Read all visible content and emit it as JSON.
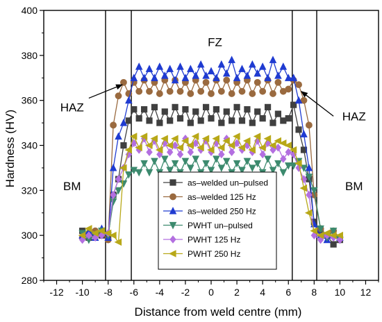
{
  "chart_data": {
    "type": "line",
    "xlabel": "Distance from weld centre (mm)",
    "ylabel": "Hardness (HV)",
    "xlim": [
      -13,
      13
    ],
    "ylim": [
      280,
      400
    ],
    "xticks": [
      -12,
      -10,
      -8,
      -6,
      -4,
      -2,
      0,
      2,
      4,
      6,
      8,
      10,
      12
    ],
    "yticks": [
      280,
      300,
      320,
      340,
      360,
      380,
      400
    ],
    "grid": false,
    "legend_position": "bottom-center",
    "boundaries": [
      -8.2,
      -6.2,
      6.3,
      8.2
    ],
    "region_labels": [
      {
        "text": "FZ",
        "x": 0.3,
        "y": 386
      },
      {
        "text": "HAZ",
        "x": -10.8,
        "y": 357
      },
      {
        "text": "HAZ",
        "x": 11.1,
        "y": 353
      },
      {
        "text": "BM",
        "x": -10.8,
        "y": 322
      },
      {
        "text": "BM",
        "x": 11.1,
        "y": 322
      }
    ],
    "annotations": [
      {
        "from": [
          -9.5,
          361
        ],
        "to": [
          -6.9,
          367
        ]
      },
      {
        "from": [
          9.5,
          353
        ],
        "to": [
          7.0,
          364
        ]
      }
    ],
    "series": [
      {
        "name": "as–welded un–pulsed",
        "color": "#404040",
        "marker": "square",
        "x": [
          -10,
          -9.5,
          -9,
          -8.5,
          -8,
          -7.6,
          -7.2,
          -6.8,
          -6.4,
          -6.0,
          -5.6,
          -5.2,
          -4.8,
          -4.4,
          -4.0,
          -3.6,
          -3.2,
          -2.8,
          -2.4,
          -2.0,
          -1.6,
          -1.2,
          -0.8,
          -0.4,
          0.0,
          0.4,
          0.8,
          1.2,
          1.6,
          2.0,
          2.4,
          2.8,
          3.2,
          3.6,
          4.0,
          4.4,
          4.8,
          5.2,
          5.6,
          6.0,
          6.4,
          6.8,
          7.2,
          7.6,
          8.0,
          8.5,
          9,
          9.5,
          10
        ],
        "values": [
          302,
          299,
          301,
          300,
          299,
          318,
          325,
          340,
          351,
          356,
          352,
          356,
          351,
          357,
          350,
          355,
          351,
          357,
          352,
          356,
          350,
          355,
          351,
          357,
          352,
          356,
          350,
          355,
          351,
          357,
          351,
          356,
          350,
          355,
          352,
          357,
          350,
          354,
          351,
          352,
          358,
          347,
          338,
          325,
          306,
          302,
          300,
          296,
          298
        ]
      },
      {
        "name": "as–welded 125 Hz",
        "color": "#9a6a3f",
        "marker": "circle",
        "x": [
          -10,
          -9.5,
          -9,
          -8.5,
          -8,
          -7.6,
          -7.2,
          -6.8,
          -6.4,
          -6.0,
          -5.6,
          -5.2,
          -4.8,
          -4.4,
          -4.0,
          -3.6,
          -3.2,
          -2.8,
          -2.4,
          -2.0,
          -1.6,
          -1.2,
          -0.8,
          -0.4,
          0.0,
          0.4,
          0.8,
          1.2,
          1.6,
          2.0,
          2.4,
          2.8,
          3.2,
          3.6,
          4.0,
          4.4,
          4.8,
          5.2,
          5.6,
          6.0,
          6.4,
          6.8,
          7.2,
          7.6,
          8.0,
          8.5,
          9,
          9.5,
          10
        ],
        "values": [
          299,
          300,
          302,
          301,
          298,
          349,
          362,
          368,
          363,
          368,
          364,
          369,
          364,
          368,
          363,
          369,
          364,
          369,
          364,
          368,
          363,
          369,
          364,
          368,
          363,
          369,
          364,
          369,
          363,
          368,
          364,
          369,
          363,
          368,
          364,
          369,
          363,
          368,
          364,
          365,
          369,
          367,
          360,
          349,
          318,
          303,
          300,
          302,
          299
        ]
      },
      {
        "name": "as–welded 250 Hz",
        "color": "#1f3bd1",
        "marker": "triangle-up",
        "x": [
          -10,
          -9.5,
          -9,
          -8.5,
          -8,
          -7.6,
          -7.2,
          -6.8,
          -6.4,
          -6.0,
          -5.6,
          -5.2,
          -4.8,
          -4.4,
          -4.0,
          -3.6,
          -3.2,
          -2.8,
          -2.4,
          -2.0,
          -1.6,
          -1.2,
          -0.8,
          -0.4,
          0.0,
          0.4,
          0.8,
          1.2,
          1.6,
          2.0,
          2.4,
          2.8,
          3.2,
          3.6,
          4.0,
          4.4,
          4.8,
          5.2,
          5.6,
          6.0,
          6.4,
          6.8,
          7.2,
          7.6,
          8.0,
          8.5,
          9,
          9.5,
          10
        ],
        "values": [
          300,
          302,
          299,
          303,
          299,
          330,
          344,
          350,
          360,
          370,
          375,
          370,
          374,
          370,
          375,
          371,
          374,
          369,
          375,
          370,
          374,
          371,
          376,
          371,
          373,
          370,
          376,
          372,
          378,
          370,
          374,
          371,
          376,
          372,
          375,
          370,
          378,
          371,
          375,
          370,
          370,
          360,
          345,
          330,
          305,
          300,
          298,
          300,
          299
        ]
      },
      {
        "name": "PWHT un–pulsed",
        "color": "#3c8a6e",
        "marker": "triangle-down",
        "x": [
          -10,
          -9.5,
          -9,
          -8.5,
          -8,
          -7.6,
          -7.2,
          -6.8,
          -6.4,
          -6.0,
          -5.6,
          -5.2,
          -4.8,
          -4.4,
          -4.0,
          -3.6,
          -3.2,
          -2.8,
          -2.4,
          -2.0,
          -1.6,
          -1.2,
          -0.8,
          -0.4,
          0.0,
          0.4,
          0.8,
          1.2,
          1.6,
          2.0,
          2.4,
          2.8,
          3.2,
          3.6,
          4.0,
          4.4,
          4.8,
          5.2,
          5.6,
          6.0,
          6.4,
          6.8,
          7.2,
          7.6,
          8.0,
          8.5,
          9,
          9.5,
          10
        ],
        "values": [
          301,
          298,
          300,
          302,
          300,
          315,
          320,
          323,
          327,
          329,
          328,
          332,
          328,
          333,
          328,
          334,
          329,
          332,
          328,
          333,
          330,
          334,
          328,
          332,
          329,
          334,
          330,
          333,
          328,
          332,
          329,
          333,
          330,
          332,
          328,
          334,
          329,
          332,
          328,
          331,
          331,
          333,
          330,
          326,
          320,
          303,
          299,
          302,
          298
        ]
      },
      {
        "name": "PWHT 125 Hz",
        "color": "#b36fe0",
        "marker": "diamond",
        "x": [
          -10,
          -9.5,
          -9,
          -8.5,
          -8,
          -7.6,
          -7.2,
          -6.8,
          -6.4,
          -6.0,
          -5.6,
          -5.2,
          -4.8,
          -4.4,
          -4.0,
          -3.6,
          -3.2,
          -2.8,
          -2.4,
          -2.0,
          -1.6,
          -1.2,
          -0.8,
          -0.4,
          0.0,
          0.4,
          0.8,
          1.2,
          1.6,
          2.0,
          2.4,
          2.8,
          3.2,
          3.6,
          4.0,
          4.4,
          4.8,
          5.2,
          5.6,
          6.0,
          6.4,
          6.8,
          7.2,
          7.6,
          8.0,
          8.5,
          9,
          9.5,
          10
        ],
        "values": [
          298,
          300,
          299,
          300,
          301,
          318,
          325,
          330,
          336,
          341,
          338,
          343,
          337,
          342,
          336,
          341,
          337,
          340,
          336,
          343,
          337,
          341,
          338,
          342,
          337,
          341,
          336,
          343,
          337,
          341,
          338,
          340,
          337,
          342,
          336,
          341,
          338,
          339,
          334,
          337,
          336,
          330,
          325,
          318,
          300,
          298,
          300,
          299,
          298
        ]
      },
      {
        "name": "PWHT 250 Hz",
        "color": "#b8a818",
        "marker": "triangle-left",
        "x": [
          -10,
          -9.5,
          -9,
          -8.5,
          -8,
          -7.6,
          -7.2,
          -6.8,
          -6.4,
          -6.0,
          -5.6,
          -5.2,
          -4.8,
          -4.4,
          -4.0,
          -3.6,
          -3.2,
          -2.8,
          -2.4,
          -2.0,
          -1.6,
          -1.2,
          -0.8,
          -0.4,
          0.0,
          0.4,
          0.8,
          1.2,
          1.6,
          2.0,
          2.4,
          2.8,
          3.2,
          3.6,
          4.0,
          4.4,
          4.8,
          5.2,
          5.6,
          6.0,
          6.4,
          6.8,
          7.2,
          7.6,
          8.0,
          8.5,
          9,
          9.5,
          10
        ],
        "values": [
          300,
          303,
          301,
          302,
          301,
          300,
          297,
          330,
          338,
          344,
          339,
          344,
          340,
          343,
          338,
          343,
          340,
          343,
          339,
          342,
          340,
          344,
          339,
          343,
          338,
          343,
          339,
          342,
          340,
          344,
          339,
          342,
          338,
          344,
          339,
          343,
          340,
          342,
          341,
          340,
          338,
          332,
          321,
          310,
          302,
          300,
          301,
          300,
          300
        ]
      }
    ]
  }
}
